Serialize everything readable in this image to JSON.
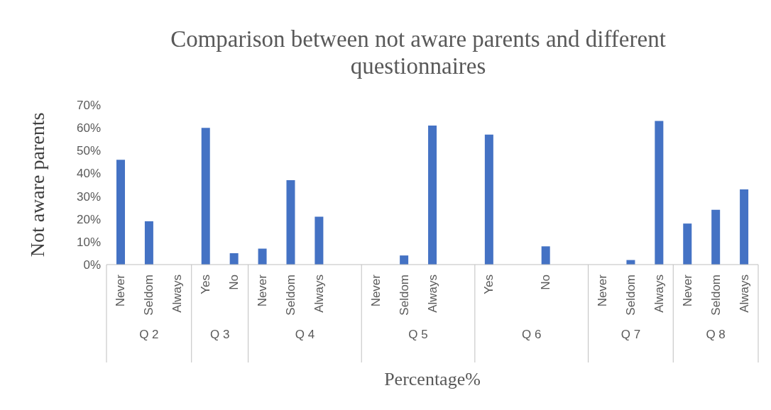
{
  "chart_data": {
    "type": "bar",
    "title": "Comparison between not aware parents and different questionnaires",
    "xlabel": "Percentage%",
    "ylabel": "Not aware parents",
    "categories": [
      "Never",
      "Seldom",
      "Always",
      "Yes",
      "No",
      "Never",
      "Seldom",
      "Always",
      null,
      "Never",
      "Seldom",
      "Always",
      null,
      "Yes",
      null,
      "No",
      null,
      "Never",
      "Seldom",
      "Always",
      "Never",
      "Seldom",
      "Always"
    ],
    "values": [
      46,
      19,
      0,
      60,
      5,
      7,
      37,
      21,
      null,
      0,
      4,
      61,
      null,
      57,
      null,
      8,
      null,
      0,
      2,
      63,
      18,
      24,
      33
    ],
    "color": "#4472c4",
    "ylim": [
      0,
      70
    ],
    "yticks": [
      {
        "value": 0,
        "label": "0%"
      },
      {
        "value": 10,
        "label": "10%"
      },
      {
        "value": 20,
        "label": "20%"
      },
      {
        "value": 30,
        "label": "30%"
      },
      {
        "value": 40,
        "label": "40%"
      },
      {
        "value": 50,
        "label": "50%"
      },
      {
        "value": 60,
        "label": "60%"
      },
      {
        "value": 70,
        "label": "70%"
      }
    ],
    "annotations": [
      "Q 2",
      "Q 3",
      "Q 4",
      "Q 5",
      "Q 6",
      "Q 7",
      "Q 8"
    ],
    "grid": false,
    "legend": false
  }
}
